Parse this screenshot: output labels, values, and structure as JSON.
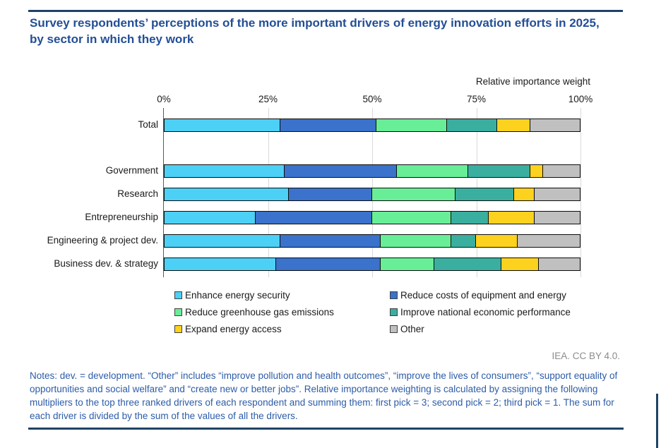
{
  "title": "Survey respondents’ perceptions of the more important drivers of energy innovation efforts in 2025, by sector in which they work",
  "axis_header": "Relative importance weight",
  "attribution": "IEA. CC BY 4.0.",
  "notes": "Notes: dev. = development. “Other” includes “improve pollution and health outcomes”, “improve the lives of consumers”, “support equality of opportunities and social welfare” and “create new or better jobs”. Relative importance weighting is calculated by assigning the following multipliers to the top three ranked drivers of each respondent and summing them: first pick = 3; second pick = 2; third pick = 1. The sum for each driver is divided by the sum of the values of all the drivers.",
  "colors": {
    "accent_navy": "#234f96",
    "rule_navy": "#1e4266",
    "grid_gray": "#d9d9d9",
    "attribution_gray": "#8c8c8c"
  },
  "chart_data": {
    "type": "bar",
    "stacked": true,
    "orientation": "horizontal",
    "title": "Survey respondents’ perceptions of the more important drivers of energy innovation efforts in 2025, by sector in which they work",
    "xlabel": "Relative importance weight",
    "ylabel": "",
    "xlim": [
      0,
      100
    ],
    "x_ticks": [
      "0%",
      "25%",
      "50%",
      "75%",
      "100%"
    ],
    "grid": true,
    "legend_position": "bottom",
    "categories": [
      "Total",
      "Government",
      "Research",
      "Entrepreneurship",
      "Engineering & project dev.",
      "Business dev. & strategy"
    ],
    "series": [
      {
        "name": "Enhance energy security",
        "color": "#4dd0f5",
        "values": [
          28,
          29,
          30,
          22,
          28,
          27
        ]
      },
      {
        "name": "Reduce costs of equipment and energy",
        "color": "#3a72cc",
        "values": [
          23,
          27,
          20,
          28,
          24,
          25
        ]
      },
      {
        "name": "Reduce greenhouse gas emissions",
        "color": "#68ee97",
        "values": [
          17,
          17,
          20,
          19,
          17,
          13
        ]
      },
      {
        "name": "Improve national economic performance",
        "color": "#3aafa0",
        "values": [
          12,
          15,
          14,
          9,
          6,
          16
        ]
      },
      {
        "name": "Expand energy access",
        "color": "#fdd21e",
        "values": [
          8,
          3,
          5,
          11,
          10,
          9
        ]
      },
      {
        "name": "Other",
        "color": "#c0c0c0",
        "values": [
          12,
          9,
          11,
          11,
          15,
          10
        ]
      }
    ]
  }
}
